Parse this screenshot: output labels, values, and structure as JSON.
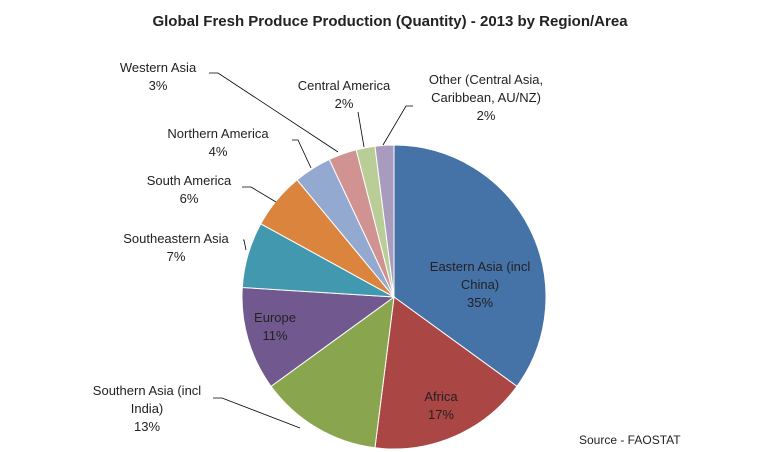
{
  "chart_data": {
    "type": "pie",
    "title": "Global Fresh Produce Production (Quantity) - 2013 by Region/Area",
    "source": "Source - FAOSTAT",
    "start": "12 o'clock, clockwise",
    "slices": [
      {
        "label": "Eastern Asia (incl China)",
        "value": 35,
        "text": "35%",
        "color": "#4572A7"
      },
      {
        "label": "Africa",
        "value": 17,
        "text": "17%",
        "color": "#AA4643"
      },
      {
        "label": "Southern Asia (incl India)",
        "value": 13,
        "text": "13%",
        "color": "#89A54E"
      },
      {
        "label": "Europe",
        "value": 11,
        "text": "11%",
        "color": "#71588F"
      },
      {
        "label": "Southeastern Asia",
        "value": 7,
        "text": "7%",
        "color": "#4198AF"
      },
      {
        "label": "South America",
        "value": 6,
        "text": "6%",
        "color": "#DB843D"
      },
      {
        "label": "Northern America",
        "value": 4,
        "text": "4%",
        "color": "#93A9CF"
      },
      {
        "label": "Western Asia",
        "value": 3,
        "text": "3%",
        "color": "#D19392"
      },
      {
        "label": "Central America",
        "value": 2,
        "text": "2%",
        "color": "#B9CD96"
      },
      {
        "label": "Other (Central Asia, Caribbean, AU/NZ)",
        "value": 2,
        "text": "2%",
        "color": "#A99BBD"
      }
    ]
  }
}
